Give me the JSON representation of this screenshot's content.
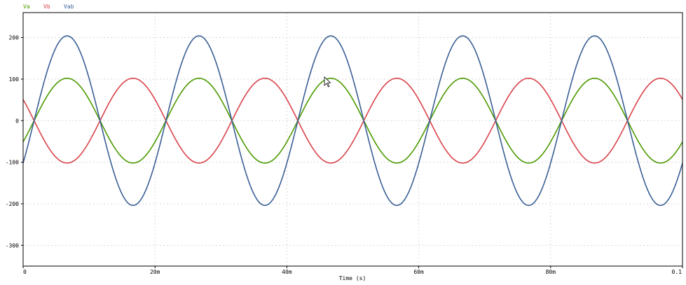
{
  "chart_data": {
    "type": "line",
    "title": "",
    "xlabel": "Time (s)",
    "ylabel": "",
    "xlim": [
      0,
      0.1
    ],
    "ylim": [
      -350,
      260
    ],
    "grid": true,
    "legend_placement": "top-left",
    "x_ticks": [
      {
        "value": 0,
        "label": "0"
      },
      {
        "value": 0.02,
        "label": "20m"
      },
      {
        "value": 0.04,
        "label": "40m"
      },
      {
        "value": 0.06,
        "label": "60m"
      },
      {
        "value": 0.08,
        "label": "80m"
      },
      {
        "value": 0.1,
        "label": "0.1"
      }
    ],
    "y_ticks": [
      {
        "value": 200,
        "label": "200"
      },
      {
        "value": 100,
        "label": "100"
      },
      {
        "value": 0,
        "label": "0"
      },
      {
        "value": -100,
        "label": "-100"
      },
      {
        "value": -200,
        "label": "-200"
      },
      {
        "value": -300,
        "label": "-300"
      }
    ],
    "series": [
      {
        "name": "Va",
        "color": "#4c9a00",
        "amplitude": 102,
        "frequency_hz": 50,
        "phase_deg": -30
      },
      {
        "name": "Vb",
        "color": "#d9434a",
        "amplitude": 102,
        "frequency_hz": 50,
        "phase_deg": 150
      },
      {
        "name": "Vab",
        "color": "#3a5f95",
        "amplitude": 204,
        "frequency_hz": 50,
        "phase_deg": -30
      }
    ]
  }
}
